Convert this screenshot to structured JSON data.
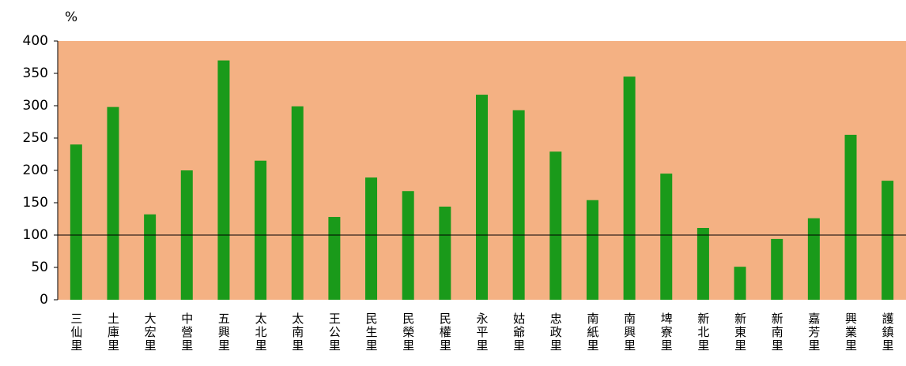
{
  "chart_data": {
    "type": "bar",
    "unit": "%",
    "categories": [
      "三仙里",
      "土庫里",
      "大宏里",
      "中營里",
      "五興里",
      "太北里",
      "太南里",
      "王公里",
      "民生里",
      "民榮里",
      "民權里",
      "永平里",
      "姑爺里",
      "忠政里",
      "南紙里",
      "南興里",
      "埤寮里",
      "新北里",
      "新東里",
      "新南里",
      "嘉芳里",
      "興業里",
      "護鎮里"
    ],
    "values": [
      240,
      298,
      132,
      200,
      370,
      215,
      299,
      128,
      189,
      168,
      144,
      317,
      293,
      229,
      154,
      345,
      195,
      111,
      51,
      94,
      126,
      255,
      184
    ],
    "color": "#1a9a1a",
    "background": "#f4b183",
    "ylim": [
      0,
      400
    ],
    "yticks": [
      0,
      50,
      100,
      150,
      200,
      250,
      300,
      350,
      400
    ],
    "reference_line": 100
  }
}
